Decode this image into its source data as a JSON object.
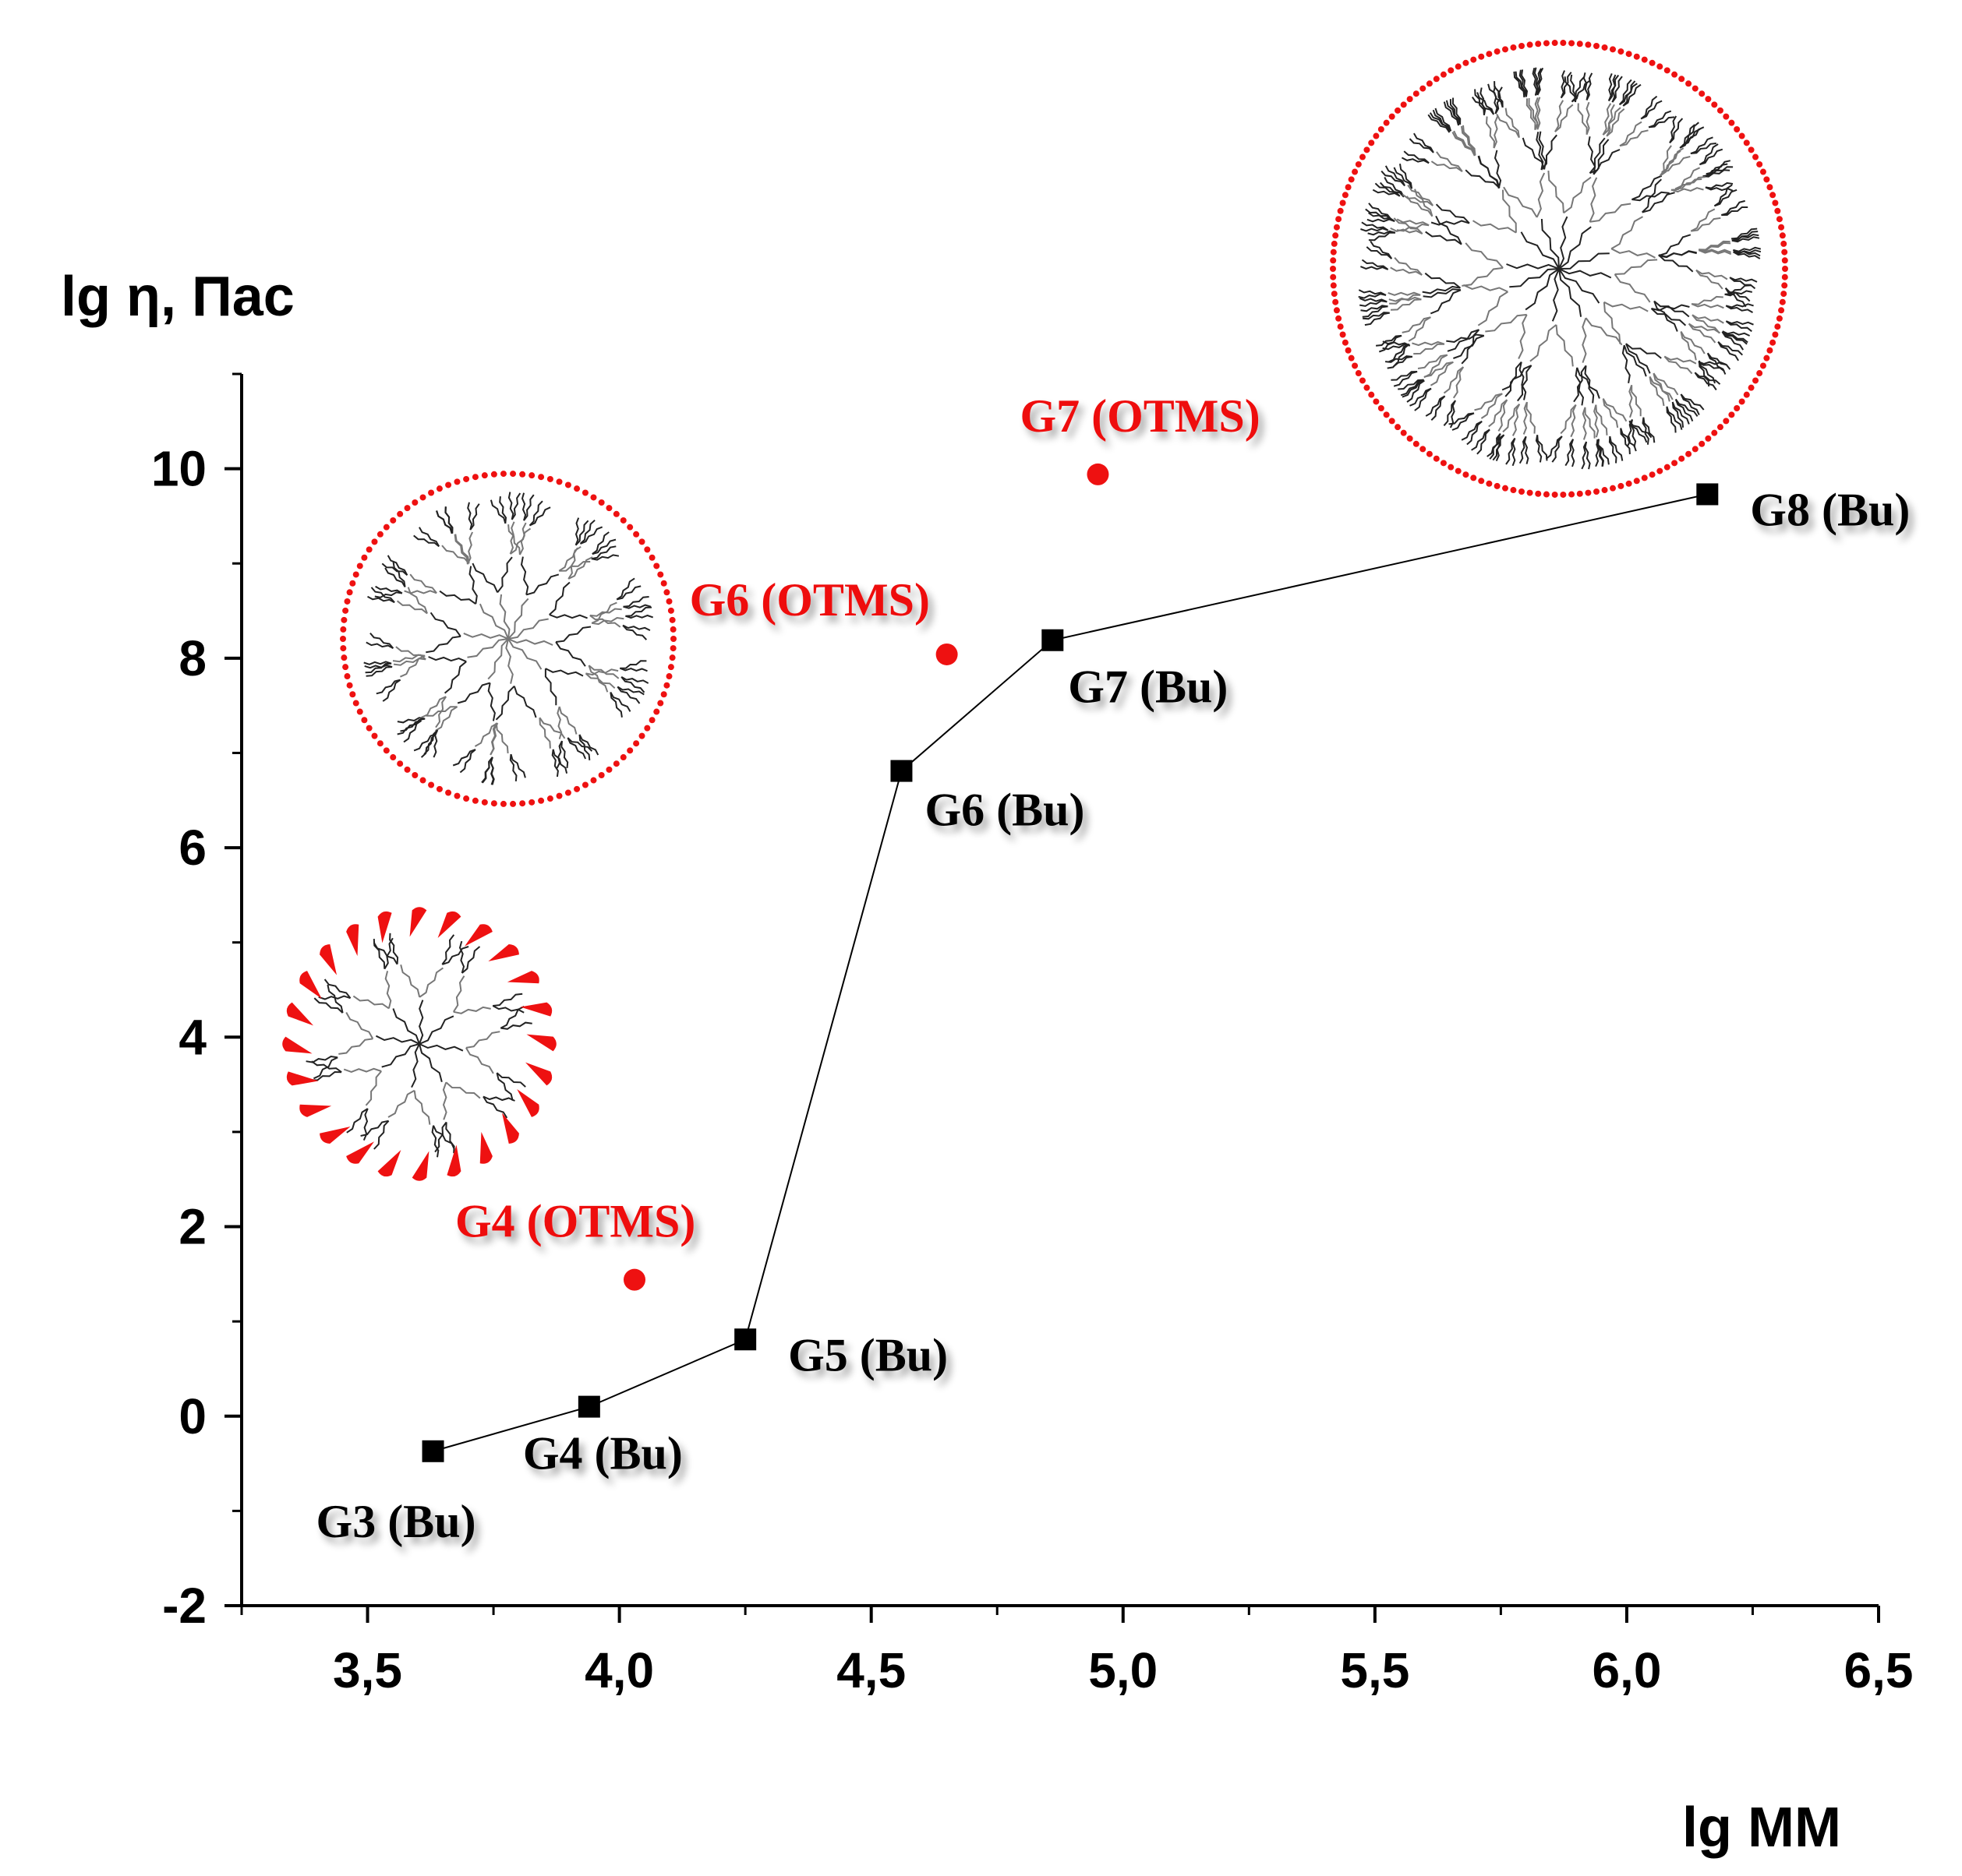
{
  "chart_data": {
    "type": "scatter",
    "title": "",
    "xlabel": "lg MM",
    "ylabel": "lg η, Пас",
    "xlim": [
      3.25,
      6.5
    ],
    "ylim": [
      -2,
      11
    ],
    "x_ticks": [
      "3,5",
      "4,0",
      "4,5",
      "5,0",
      "5,5",
      "6,0",
      "6,5"
    ],
    "x_tick_values": [
      3.5,
      4.0,
      4.5,
      5.0,
      5.5,
      6.0,
      6.5
    ],
    "y_ticks": [
      "-2",
      "0",
      "2",
      "4",
      "6",
      "8",
      "10"
    ],
    "y_tick_values": [
      -2,
      0,
      2,
      4,
      6,
      8,
      10
    ],
    "grid": false,
    "series": [
      {
        "name": "Bu",
        "color": "#000000",
        "marker": "square",
        "connected": true,
        "points": [
          {
            "label": "G3 (Bu)",
            "x": 3.63,
            "y": -0.37
          },
          {
            "label": "G4 (Bu)",
            "x": 3.94,
            "y": 0.1
          },
          {
            "label": "G5 (Bu)",
            "x": 4.25,
            "y": 0.81
          },
          {
            "label": "G6 (Bu)",
            "x": 4.56,
            "y": 6.81
          },
          {
            "label": "G7 (Bu)",
            "x": 4.86,
            "y": 8.19
          },
          {
            "label": "G8 (Bu)",
            "x": 6.16,
            "y": 9.73
          }
        ]
      },
      {
        "name": "OTMS",
        "color": "#ee1111",
        "marker": "circle",
        "connected": false,
        "points": [
          {
            "label": "G4 (OTMS)",
            "x": 4.03,
            "y": 1.44
          },
          {
            "label": "G6 (OTMS)",
            "x": 4.65,
            "y": 8.04
          },
          {
            "label": "G7 (OTMS)",
            "x": 4.95,
            "y": 9.94
          }
        ]
      }
    ],
    "illustrations": [
      "small-dendrimer-illustration",
      "medium-dendrimer-illustration",
      "large-dendrimer-illustration"
    ]
  }
}
